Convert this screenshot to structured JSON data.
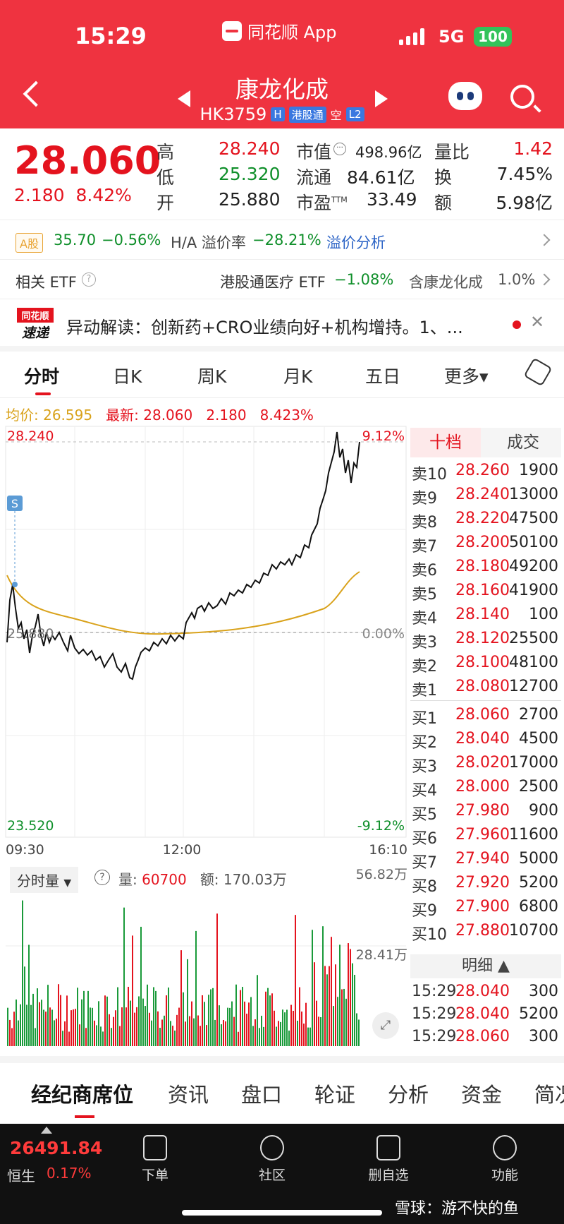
{
  "status_bar": {
    "time": "15:29",
    "app_name": "同花顺 App",
    "network": "5G",
    "battery": "100"
  },
  "header": {
    "stock_name": "康龙化成",
    "code": "HK3759",
    "h_badge": "H",
    "connect_badge": "港股通",
    "short_label": "空",
    "level_badge": "L2"
  },
  "quote": {
    "price": "28.060",
    "change": "2.180",
    "change_pct": "8.42%",
    "stats": [
      {
        "label": "高",
        "value": "28.240",
        "color": "red"
      },
      {
        "label": "低",
        "value": "25.320",
        "color": "green"
      },
      {
        "label": "开",
        "value": "25.880",
        "color": "black"
      },
      {
        "label": "市值",
        "value": "498.96亿",
        "color": "black"
      },
      {
        "label": "流通",
        "value": "84.61亿",
        "color": "black"
      },
      {
        "label": "市盈",
        "sup": "TTM",
        "value": "33.49",
        "color": "black"
      },
      {
        "label": "量比",
        "value": "1.42",
        "color": "red"
      },
      {
        "label": "换",
        "value": "7.45%",
        "color": "black"
      },
      {
        "label": "额",
        "value": "5.98亿",
        "color": "black"
      }
    ]
  },
  "ashare_row": {
    "badge": "A股",
    "price": "35.70",
    "change": "−0.56%",
    "premium_label": "H/A 溢价率",
    "premium_value": "−28.21%",
    "link": "溢价分析"
  },
  "etf_row": {
    "label": "相关 ETF",
    "etf_name": "港股通医疗 ETF",
    "etf_change": "−1.08%",
    "holding_label": "含康龙化成",
    "holding_pct": "1.0%"
  },
  "news_row": {
    "logo_top": "同花顺",
    "logo_bottom": "速递",
    "text": "异动解读：创新药+CRO业绩向好+机构增持。1、..."
  },
  "chart_tabs": [
    "分时",
    "日K",
    "周K",
    "月K",
    "五日",
    "更多▾"
  ],
  "chart_info": {
    "avg_label": "均价: 26.595",
    "latest_label": "最新: 28.060",
    "change": "2.180",
    "change_pct": "8.423%"
  },
  "chart_labels": {
    "top_price": "28.240",
    "bottom_price": "23.520",
    "mid_price": "25.880",
    "top_pct": "9.12%",
    "mid_pct": "0.00%",
    "bottom_pct": "-9.12%",
    "time_start": "09:30",
    "time_mid": "12:00",
    "time_end": "16:10",
    "s_marker": "S"
  },
  "volume_info": {
    "selector": "分时量",
    "vol_label": "量:",
    "vol_value": "60700",
    "amt_label": "额:",
    "amt_value": "170.03万",
    "max_label": "56.82万",
    "mid_label": "28.41万"
  },
  "book_tabs": {
    "active": "十档",
    "other": "成交"
  },
  "order_book": {
    "asks": [
      {
        "level": "卖10",
        "price": "28.260",
        "vol": "1900"
      },
      {
        "level": "卖9",
        "price": "28.240",
        "vol": "13000"
      },
      {
        "level": "卖8",
        "price": "28.220",
        "vol": "47500"
      },
      {
        "level": "卖7",
        "price": "28.200",
        "vol": "50100"
      },
      {
        "level": "卖6",
        "price": "28.180",
        "vol": "49200"
      },
      {
        "level": "卖5",
        "price": "28.160",
        "vol": "41900"
      },
      {
        "level": "卖4",
        "price": "28.140",
        "vol": "100"
      },
      {
        "level": "卖3",
        "price": "28.120",
        "vol": "25500"
      },
      {
        "level": "卖2",
        "price": "28.100",
        "vol": "48100"
      },
      {
        "level": "卖1",
        "price": "28.080",
        "vol": "12700"
      }
    ],
    "bids": [
      {
        "level": "买1",
        "price": "28.060",
        "vol": "2700"
      },
      {
        "level": "买2",
        "price": "28.040",
        "vol": "4500"
      },
      {
        "level": "买3",
        "price": "28.020",
        "vol": "17000"
      },
      {
        "level": "买4",
        "price": "28.000",
        "vol": "2500"
      },
      {
        "level": "买5",
        "price": "27.980",
        "vol": "900"
      },
      {
        "level": "买6",
        "price": "27.960",
        "vol": "11600"
      },
      {
        "level": "买7",
        "price": "27.940",
        "vol": "5000"
      },
      {
        "level": "买8",
        "price": "27.920",
        "vol": "5200"
      },
      {
        "level": "买9",
        "price": "27.900",
        "vol": "6800"
      },
      {
        "level": "买10",
        "price": "27.880",
        "vol": "10700"
      }
    ]
  },
  "detail": {
    "label": "明细 ▲",
    "trades": [
      {
        "time": "15:29",
        "price": "28.040",
        "vol": "300"
      },
      {
        "time": "15:29",
        "price": "28.040",
        "vol": "5200"
      },
      {
        "time": "15:29",
        "price": "28.060",
        "vol": "300"
      }
    ]
  },
  "sub_tabs": [
    "经纪商席位",
    "资讯",
    "盘口",
    "轮证",
    "分析",
    "资金",
    "简况"
  ],
  "bottom_bar": {
    "index_value": "26491.84",
    "index_name": "恒生",
    "index_pct": "0.17%",
    "nav": [
      "下单",
      "社区",
      "删自选",
      "功能"
    ],
    "watermark": "雪球：游不快的鱼"
  },
  "colors": {
    "header": "#ef3340",
    "up": "#e4131e",
    "down": "#0f8f2a",
    "avg_line": "#d9a21b"
  }
}
